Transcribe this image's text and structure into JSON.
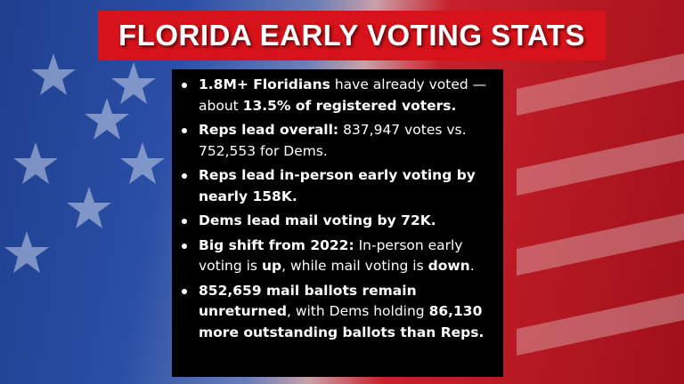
{
  "title": "FLORIDA EARLY VOTING STATS",
  "bullets": [
    [
      {
        "text": "1.8M+ Floridians",
        "bold": true
      },
      {
        "text": " have already voted — about ",
        "bold": false
      },
      {
        "text": "13.5% of registered voters.",
        "bold": true
      }
    ],
    [
      {
        "text": "Reps lead overall:",
        "bold": true
      },
      {
        "text": " 837,947 votes vs. 752,553 for Dems.",
        "bold": false
      }
    ],
    [
      {
        "text": "Reps lead in-person early voting by nearly 158K.",
        "bold": true
      }
    ],
    [
      {
        "text": "Dems lead mail voting by 72K.",
        "bold": true
      }
    ],
    [
      {
        "text": "Big shift from 2022:",
        "bold": true
      },
      {
        "text": " In-person early voting is ",
        "bold": false
      },
      {
        "text": "up",
        "bold": true
      },
      {
        "text": ", while mail voting is ",
        "bold": false
      },
      {
        "text": "down",
        "bold": true
      },
      {
        "text": ".",
        "bold": false
      }
    ],
    [
      {
        "text": "852,659 mail ballots remain unreturned",
        "bold": true
      },
      {
        "text": ", with Dems holding ",
        "bold": false
      },
      {
        "text": "86,130 more outstanding ballots than Reps.",
        "bold": true
      }
    ]
  ]
}
